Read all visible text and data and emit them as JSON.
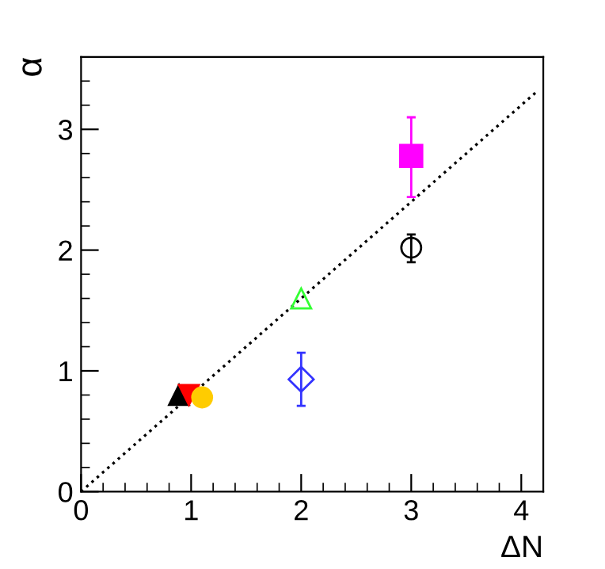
{
  "chart_data": {
    "type": "scatter",
    "xlabel": "ΔN",
    "ylabel": "α",
    "xlim": [
      0,
      4.2
    ],
    "ylim": [
      0,
      3.6
    ],
    "xticks": [
      0,
      1,
      2,
      3,
      4
    ],
    "yticks": [
      0,
      1,
      2,
      3
    ],
    "grid": false,
    "series": [
      {
        "type": "line",
        "x": [
          0,
          4.15
        ],
        "values": [
          0,
          3.32
        ],
        "color": "#000000",
        "line_style": "dotted",
        "marker": "none"
      },
      {
        "x": [
          0.89
        ],
        "values": [
          0.8
        ],
        "color": "#000000",
        "marker": "triangle"
      },
      {
        "x": [
          0.98
        ],
        "values": [
          0.8
        ],
        "color": "#ff0000",
        "marker": "triangle_down"
      },
      {
        "x": [
          1.1
        ],
        "values": [
          0.78
        ],
        "color": "#ffcc00",
        "marker": "circle"
      },
      {
        "x": [
          2
        ],
        "values": [
          1.6
        ],
        "color": "#33ff33",
        "marker": "triangle-open"
      },
      {
        "x": [
          2
        ],
        "values": [
          0.93
        ],
        "color": "#3333ff",
        "marker": "diamond-open",
        "errors": [
          [
            0.71,
            1.15
          ]
        ]
      },
      {
        "x": [
          3
        ],
        "values": [
          2.78
        ],
        "color": "#ff00ff",
        "marker": "square",
        "errors": [
          [
            2.44,
            3.1
          ]
        ]
      },
      {
        "x": [
          3
        ],
        "values": [
          2.02
        ],
        "color": "#000000",
        "marker": "circle-open",
        "errors": [
          [
            1.9,
            2.13
          ]
        ]
      }
    ]
  }
}
